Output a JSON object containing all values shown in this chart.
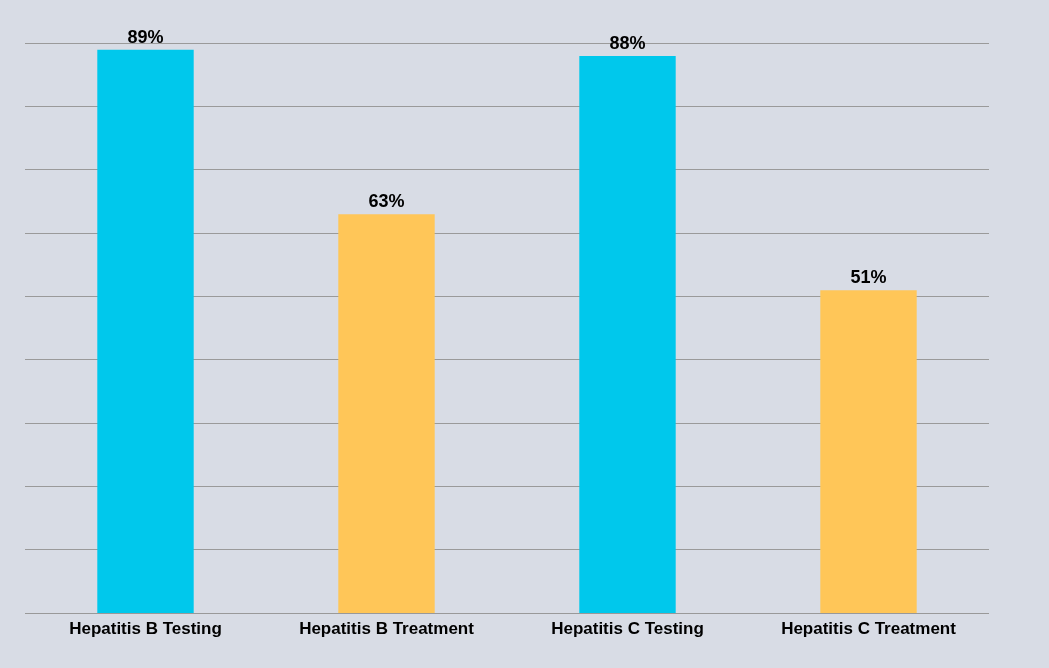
{
  "chart_data": {
    "type": "bar",
    "categories": [
      "Hepatitis B Testing",
      "Hepatitis B Treatment",
      "Hepatitis C Testing",
      "Hepatitis C Treatment"
    ],
    "values": [
      89,
      63,
      88,
      51
    ],
    "colors": [
      "#00c8ec",
      "#ffc658",
      "#00c8ec",
      "#ffc658"
    ],
    "value_labels": [
      "89%",
      "63%",
      "88%",
      "51%"
    ],
    "grid": "y",
    "tick_labels": "x"
  }
}
